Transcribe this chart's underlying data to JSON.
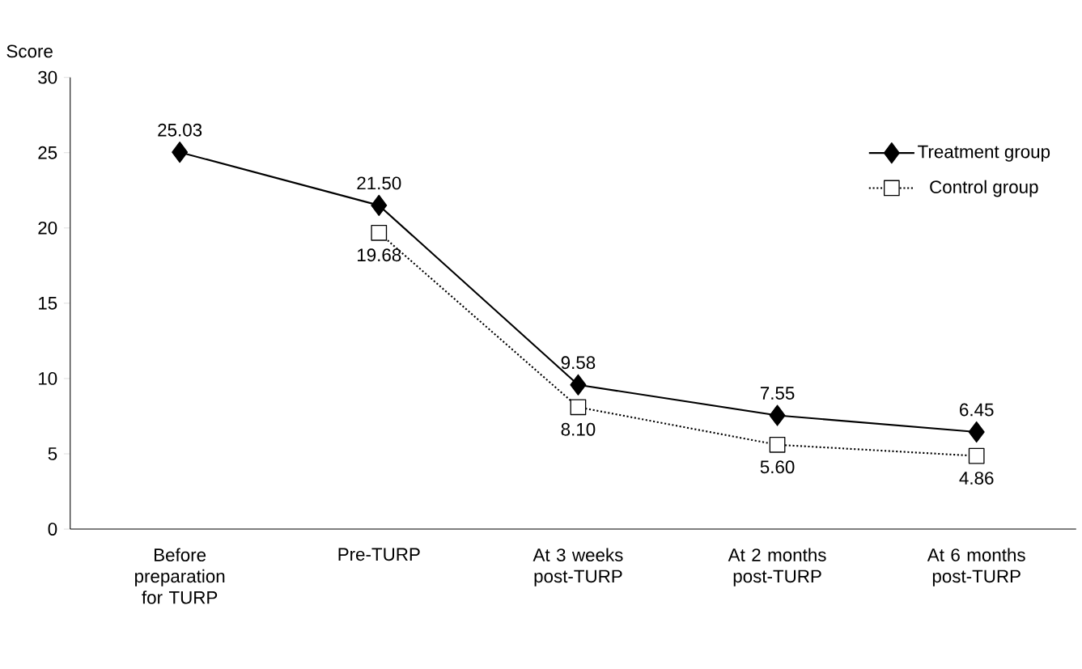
{
  "chart_data": {
    "type": "line",
    "ylabel": "Score",
    "categories": [
      "Before preparation for TURP",
      "Pre-TURP",
      "At 3 weeks post-TURP",
      "At 2 months post-TURP",
      "At 6 months post-TURP"
    ],
    "series": [
      {
        "name": "Treatment group",
        "color": "#000000",
        "marker": "diamond",
        "line_style": "solid",
        "values": [
          25.03,
          21.5,
          9.58,
          7.55,
          6.45
        ],
        "value_labels": [
          "25.03",
          "21.50",
          "9.58",
          "7.55",
          "6.45"
        ]
      },
      {
        "name": "Control group",
        "color": "#000000",
        "marker": "square",
        "line_style": "dotted",
        "values": [
          null,
          19.68,
          8.1,
          5.6,
          4.86
        ],
        "value_labels": [
          null,
          "19.68",
          "8.10",
          "5.60",
          "4.86"
        ]
      }
    ],
    "ylim": [
      0,
      30
    ],
    "yticks": [
      0,
      5,
      10,
      15,
      20,
      25,
      30
    ],
    "grid": false,
    "legend": "top right"
  }
}
